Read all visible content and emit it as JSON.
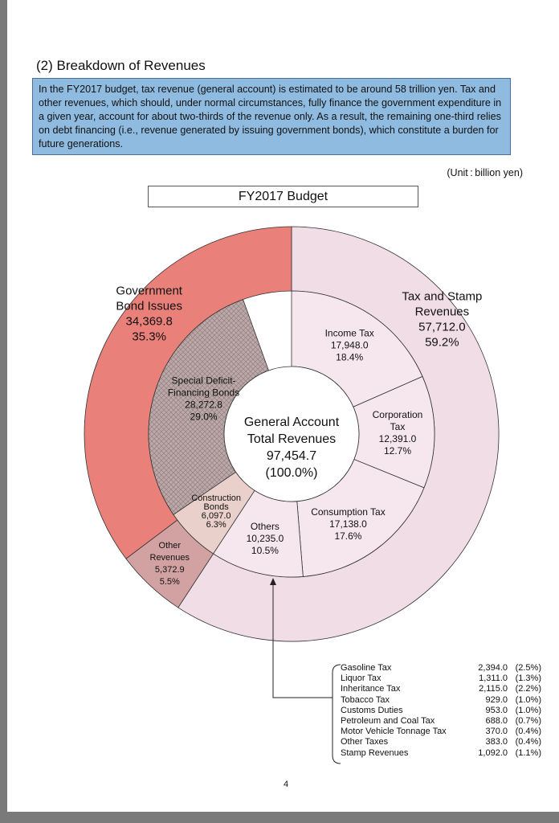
{
  "section_title": "(2) Breakdown of Revenues",
  "intro_text": "In the FY2017 budget, tax revenue (general account) is estimated to be around 58 trillion yen. Tax and other revenues, which should, under normal circumstances, fully finance the government expenditure in a given year, account for about two-thirds of the revenue only. As a result, the remaining one-third relies on debt financing (i.e., revenue generated by issuing government bonds), which constitute a burden for  future generations.",
  "unit_label": "(Unit : billion yen)",
  "budget_title": "FY2017 Budget",
  "colors": {
    "bond_outer": "#e98079",
    "tax_outer": "#f1dde6",
    "other_outer": "#d2a2a2",
    "special_deficit": "#bba8a8",
    "construction": "#ead0cb",
    "tax_inner": "#f6e6ee",
    "center": "#ffffff",
    "line": "#333333"
  },
  "chart_data": {
    "type": "pie",
    "subtype": "nested-donut",
    "title": "FY2017 Budget",
    "unit": "billion yen",
    "center": {
      "line1": "General Account",
      "line2": "Total Revenues",
      "value": "97,454.7",
      "percent": "(100.0%)",
      "total": 97454.7
    },
    "outer_ring": [
      {
        "name": "Tax and Stamp Revenues",
        "label_lines": [
          "Tax and Stamp",
          "Revenues"
        ],
        "value": 57712.0,
        "value_text": "57,712.0",
        "percent": "59.2%"
      },
      {
        "name": "Other Revenues",
        "label_lines": [
          "Other",
          "Revenues"
        ],
        "value": 5372.9,
        "value_text": "5,372.9",
        "percent": "5.5%"
      },
      {
        "name": "Government Bond Issues",
        "label_lines": [
          "Government",
          "Bond Issues"
        ],
        "value": 34369.8,
        "value_text": "34,369.8",
        "percent": "35.3%"
      }
    ],
    "inner_ring": [
      {
        "name": "Income Tax",
        "label_lines": [
          "Income Tax"
        ],
        "value": 17948.0,
        "value_text": "17,948.0",
        "percent": "18.4%"
      },
      {
        "name": "Corporation Tax",
        "label_lines": [
          "Corporation",
          "Tax"
        ],
        "value": 12391.0,
        "value_text": "12,391.0",
        "percent": "12.7%"
      },
      {
        "name": "Consumption Tax",
        "label_lines": [
          "Consumption Tax"
        ],
        "value": 17138.0,
        "value_text": "17,138.0",
        "percent": "17.6%"
      },
      {
        "name": "Others",
        "label_lines": [
          "Others"
        ],
        "value": 10235.0,
        "value_text": "10,235.0",
        "percent": "10.5%"
      },
      {
        "name": "Construction Bonds",
        "label_lines": [
          "Construction",
          "Bonds"
        ],
        "value": 6097.0,
        "value_text": "6,097.0",
        "percent": "6.3%"
      },
      {
        "name": "Special Deficit-Financing Bonds",
        "label_lines": [
          "Special Deficit-",
          "Financing Bonds"
        ],
        "value": 28272.8,
        "value_text": "28,272.8",
        "percent": "29.0%"
      }
    ],
    "others_breakdown": [
      {
        "name": "Gasoline Tax",
        "value": 2394.0,
        "value_text": "2,394.0",
        "percent": "(2.5%)"
      },
      {
        "name": "Liquor Tax",
        "value": 1311.0,
        "value_text": "1,311.0",
        "percent": "(1.3%)"
      },
      {
        "name": "Inheritance Tax",
        "value": 2115.0,
        "value_text": "2,115.0",
        "percent": "(2.2%)"
      },
      {
        "name": "Tobacco Tax",
        "value": 929.0,
        "value_text": "929.0",
        "percent": "(1.0%)"
      },
      {
        "name": "Customs Duties",
        "value": 953.0,
        "value_text": "953.0",
        "percent": "(1.0%)"
      },
      {
        "name": "Petroleum and Coal Tax",
        "value": 688.0,
        "value_text": "688.0",
        "percent": "(0.7%)"
      },
      {
        "name": "Motor Vehicle Tonnage Tax",
        "value": 370.0,
        "value_text": "370.0",
        "percent": "(0.4%)"
      },
      {
        "name": "Other Taxes",
        "value": 383.0,
        "value_text": "383.0",
        "percent": "(0.4%)"
      },
      {
        "name": "Stamp Revenues",
        "value": 1092.0,
        "value_text": "1,092.0",
        "percent": "(1.1%)"
      }
    ]
  },
  "page_number": "4"
}
